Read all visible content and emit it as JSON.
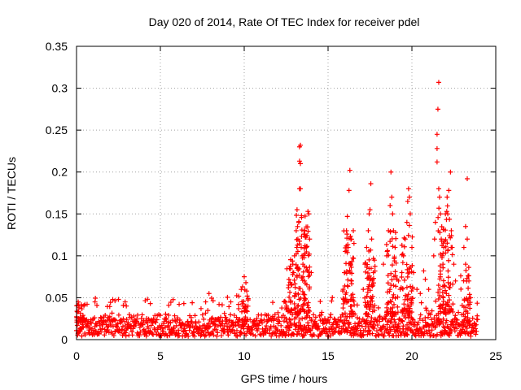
{
  "chart_data": {
    "type": "scatter",
    "title": "Day 020 of 2014, Rate Of TEC Index for receiver pdel",
    "xlabel": "GPS time / hours",
    "ylabel": "ROTI / TECUs",
    "xlim": [
      0,
      25
    ],
    "ylim": [
      0,
      0.35
    ],
    "grid": true,
    "marker": "+",
    "color": "#ff0000",
    "x_ticks": [
      0,
      5,
      10,
      15,
      20,
      25
    ],
    "x_tick_labels": [
      "0",
      "5",
      "10",
      "15",
      "20",
      "25"
    ],
    "y_ticks": [
      0,
      0.05,
      0.1,
      0.15,
      0.2,
      0.25,
      0.3,
      0.35
    ],
    "y_tick_labels": [
      "0",
      "0.05",
      "0.1",
      "0.15",
      "0.2",
      "0.25",
      "0.3",
      "0.35"
    ],
    "background_band": {
      "x_start": 0.0,
      "x_end": 23.9,
      "step": 0.045,
      "base_min": 0.004,
      "base_max": 0.03,
      "spike_max": 0.052,
      "spike_probability": 0.12
    },
    "points": [
      [
        0.1,
        0.045
      ],
      [
        0.5,
        0.042
      ],
      [
        1.1,
        0.045
      ],
      [
        2.5,
        0.048
      ],
      [
        2.9,
        0.045
      ],
      [
        4.4,
        0.043
      ],
      [
        5.5,
        0.041
      ],
      [
        6.4,
        0.043
      ],
      [
        6.9,
        0.044
      ],
      [
        7.7,
        0.045
      ],
      [
        7.9,
        0.055
      ],
      [
        8.5,
        0.042
      ],
      [
        9.2,
        0.045
      ],
      [
        9.9,
        0.063
      ],
      [
        10.0,
        0.075
      ],
      [
        10.1,
        0.068
      ],
      [
        10.15,
        0.058
      ],
      [
        12.7,
        0.085
      ],
      [
        12.8,
        0.065
      ],
      [
        12.9,
        0.09
      ],
      [
        12.95,
        0.08
      ],
      [
        13.0,
        0.1
      ],
      [
        13.1,
        0.13
      ],
      [
        13.15,
        0.155
      ],
      [
        13.2,
        0.12
      ],
      [
        13.25,
        0.14
      ],
      [
        13.3,
        0.23
      ],
      [
        13.35,
        0.232
      ],
      [
        13.3,
        0.213
      ],
      [
        13.35,
        0.21
      ],
      [
        13.3,
        0.18
      ],
      [
        13.35,
        0.18
      ],
      [
        13.4,
        0.11
      ],
      [
        13.45,
        0.1
      ],
      [
        13.5,
        0.09
      ],
      [
        13.6,
        0.13
      ],
      [
        13.7,
        0.11
      ],
      [
        13.8,
        0.153
      ],
      [
        13.85,
        0.15
      ],
      [
        13.9,
        0.12
      ],
      [
        14.0,
        0.08
      ],
      [
        13.6,
        0.07
      ],
      [
        15.9,
        0.06
      ],
      [
        16.0,
        0.08
      ],
      [
        16.1,
        0.13
      ],
      [
        16.15,
        0.147
      ],
      [
        16.2,
        0.11
      ],
      [
        16.25,
        0.178
      ],
      [
        16.3,
        0.202
      ],
      [
        16.35,
        0.09
      ],
      [
        16.4,
        0.07
      ],
      [
        16.5,
        0.05
      ],
      [
        17.1,
        0.06
      ],
      [
        17.2,
        0.09
      ],
      [
        17.3,
        0.11
      ],
      [
        17.4,
        0.13
      ],
      [
        17.45,
        0.15
      ],
      [
        17.5,
        0.155
      ],
      [
        17.55,
        0.186
      ],
      [
        17.6,
        0.12
      ],
      [
        17.7,
        0.08
      ],
      [
        18.3,
        0.09
      ],
      [
        18.5,
        0.1
      ],
      [
        18.6,
        0.13
      ],
      [
        18.7,
        0.16
      ],
      [
        18.75,
        0.2
      ],
      [
        18.8,
        0.17
      ],
      [
        18.85,
        0.15
      ],
      [
        18.9,
        0.13
      ],
      [
        19.0,
        0.11
      ],
      [
        19.2,
        0.07
      ],
      [
        19.3,
        0.06
      ],
      [
        19.4,
        0.08
      ],
      [
        19.5,
        0.1
      ],
      [
        19.6,
        0.12
      ],
      [
        19.7,
        0.14
      ],
      [
        19.75,
        0.165
      ],
      [
        19.8,
        0.18
      ],
      [
        19.85,
        0.17
      ],
      [
        19.9,
        0.15
      ],
      [
        20.0,
        0.11
      ],
      [
        20.1,
        0.08
      ],
      [
        20.3,
        0.06
      ],
      [
        20.5,
        0.055
      ],
      [
        20.7,
        0.082
      ],
      [
        20.8,
        0.072
      ],
      [
        21.0,
        0.06
      ],
      [
        21.3,
        0.1
      ],
      [
        21.35,
        0.12
      ],
      [
        21.4,
        0.14
      ],
      [
        21.5,
        0.212
      ],
      [
        21.5,
        0.228
      ],
      [
        21.5,
        0.245
      ],
      [
        21.55,
        0.275
      ],
      [
        21.6,
        0.307
      ],
      [
        21.6,
        0.18
      ],
      [
        21.65,
        0.17
      ],
      [
        21.7,
        0.15
      ],
      [
        21.75,
        0.12
      ],
      [
        21.8,
        0.1
      ],
      [
        21.85,
        0.09
      ],
      [
        21.9,
        0.11
      ],
      [
        22.0,
        0.15
      ],
      [
        22.1,
        0.17
      ],
      [
        22.2,
        0.178
      ],
      [
        22.3,
        0.2
      ],
      [
        22.35,
        0.13
      ],
      [
        22.4,
        0.11
      ],
      [
        22.5,
        0.09
      ],
      [
        22.6,
        0.07
      ],
      [
        23.3,
        0.192
      ],
      [
        23.2,
        0.135
      ],
      [
        23.1,
        0.11
      ],
      [
        23.2,
        0.09
      ],
      [
        23.3,
        0.12
      ],
      [
        23.4,
        0.07
      ],
      [
        23.5,
        0.05
      ]
    ],
    "clusters": [
      {
        "x_center": 0.2,
        "x_spread": 0.25,
        "y_min": 0.02,
        "y_max": 0.045,
        "count": 25
      },
      {
        "x_center": 9.9,
        "x_spread": 0.35,
        "y_min": 0.02,
        "y_max": 0.06,
        "count": 28
      },
      {
        "x_center": 12.9,
        "x_spread": 0.4,
        "y_min": 0.03,
        "y_max": 0.1,
        "count": 45
      },
      {
        "x_center": 13.5,
        "x_spread": 0.4,
        "y_min": 0.03,
        "y_max": 0.15,
        "count": 90
      },
      {
        "x_center": 16.2,
        "x_spread": 0.35,
        "y_min": 0.03,
        "y_max": 0.13,
        "count": 60
      },
      {
        "x_center": 17.5,
        "x_spread": 0.3,
        "y_min": 0.03,
        "y_max": 0.12,
        "count": 55
      },
      {
        "x_center": 18.8,
        "x_spread": 0.35,
        "y_min": 0.03,
        "y_max": 0.13,
        "count": 60
      },
      {
        "x_center": 19.7,
        "x_spread": 0.35,
        "y_min": 0.03,
        "y_max": 0.14,
        "count": 60
      },
      {
        "x_center": 22.0,
        "x_spread": 0.45,
        "y_min": 0.03,
        "y_max": 0.16,
        "count": 95
      },
      {
        "x_center": 23.2,
        "x_spread": 0.3,
        "y_min": 0.02,
        "y_max": 0.09,
        "count": 30
      }
    ]
  }
}
